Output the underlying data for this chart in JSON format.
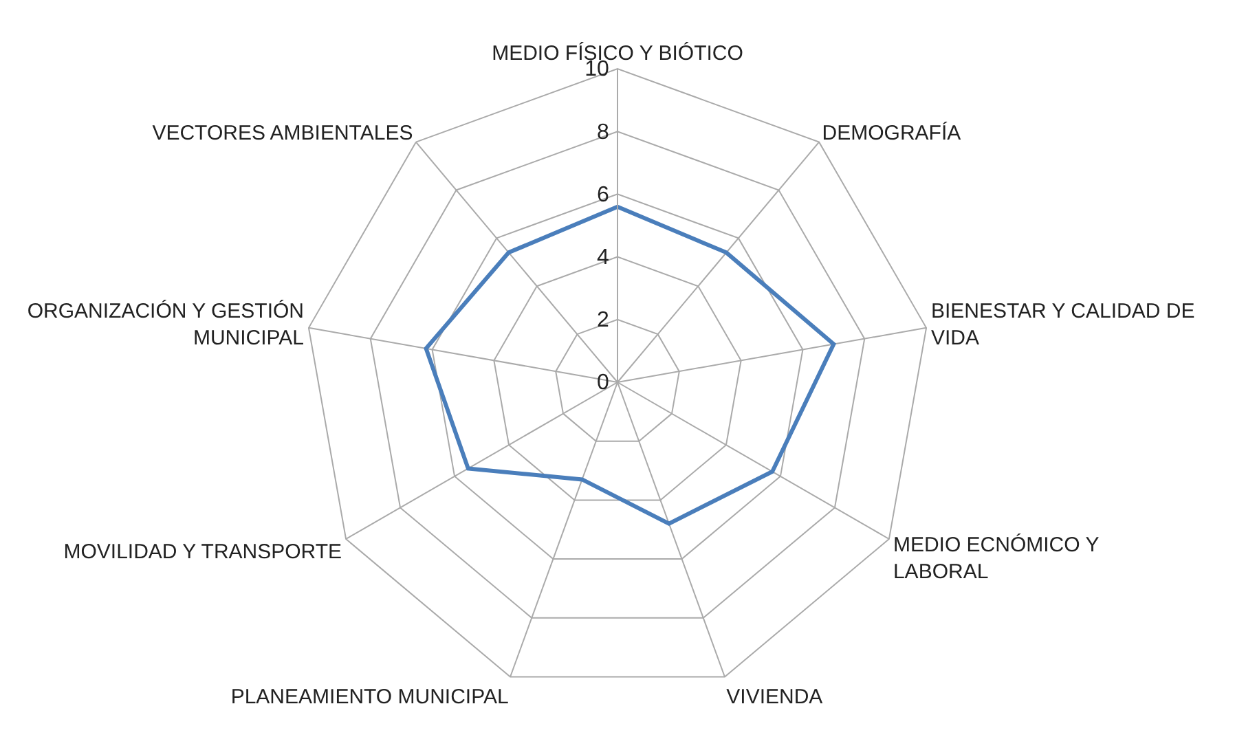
{
  "chart_data": {
    "type": "radar",
    "categories": [
      "MEDIO FÍSICO Y BIÓTICO",
      "DEMOGRAFÍA",
      "BIENESTAR Y CALIDAD DE VIDA",
      "MEDIO ECNÓMICO Y LABORAL",
      "VIVIENDA",
      "PLANEAMIENTO MUNICIPAL",
      "MOVILIDAD Y TRANSPORTE",
      "ORGANIZACIÓN Y GESTIÓN MUNICIPAL",
      "VECTORES AMBIENTALES"
    ],
    "series": [
      {
        "color": "#4a7ebb",
        "values": [
          5.6,
          5.4,
          7.0,
          5.7,
          4.8,
          3.3,
          5.5,
          6.2,
          5.4
        ]
      }
    ],
    "ylim": [
      0,
      10
    ],
    "yticks": [
      0,
      2,
      4,
      6,
      8,
      10
    ],
    "grid": true,
    "legend": false,
    "marker": "none",
    "line_style": "solid"
  }
}
